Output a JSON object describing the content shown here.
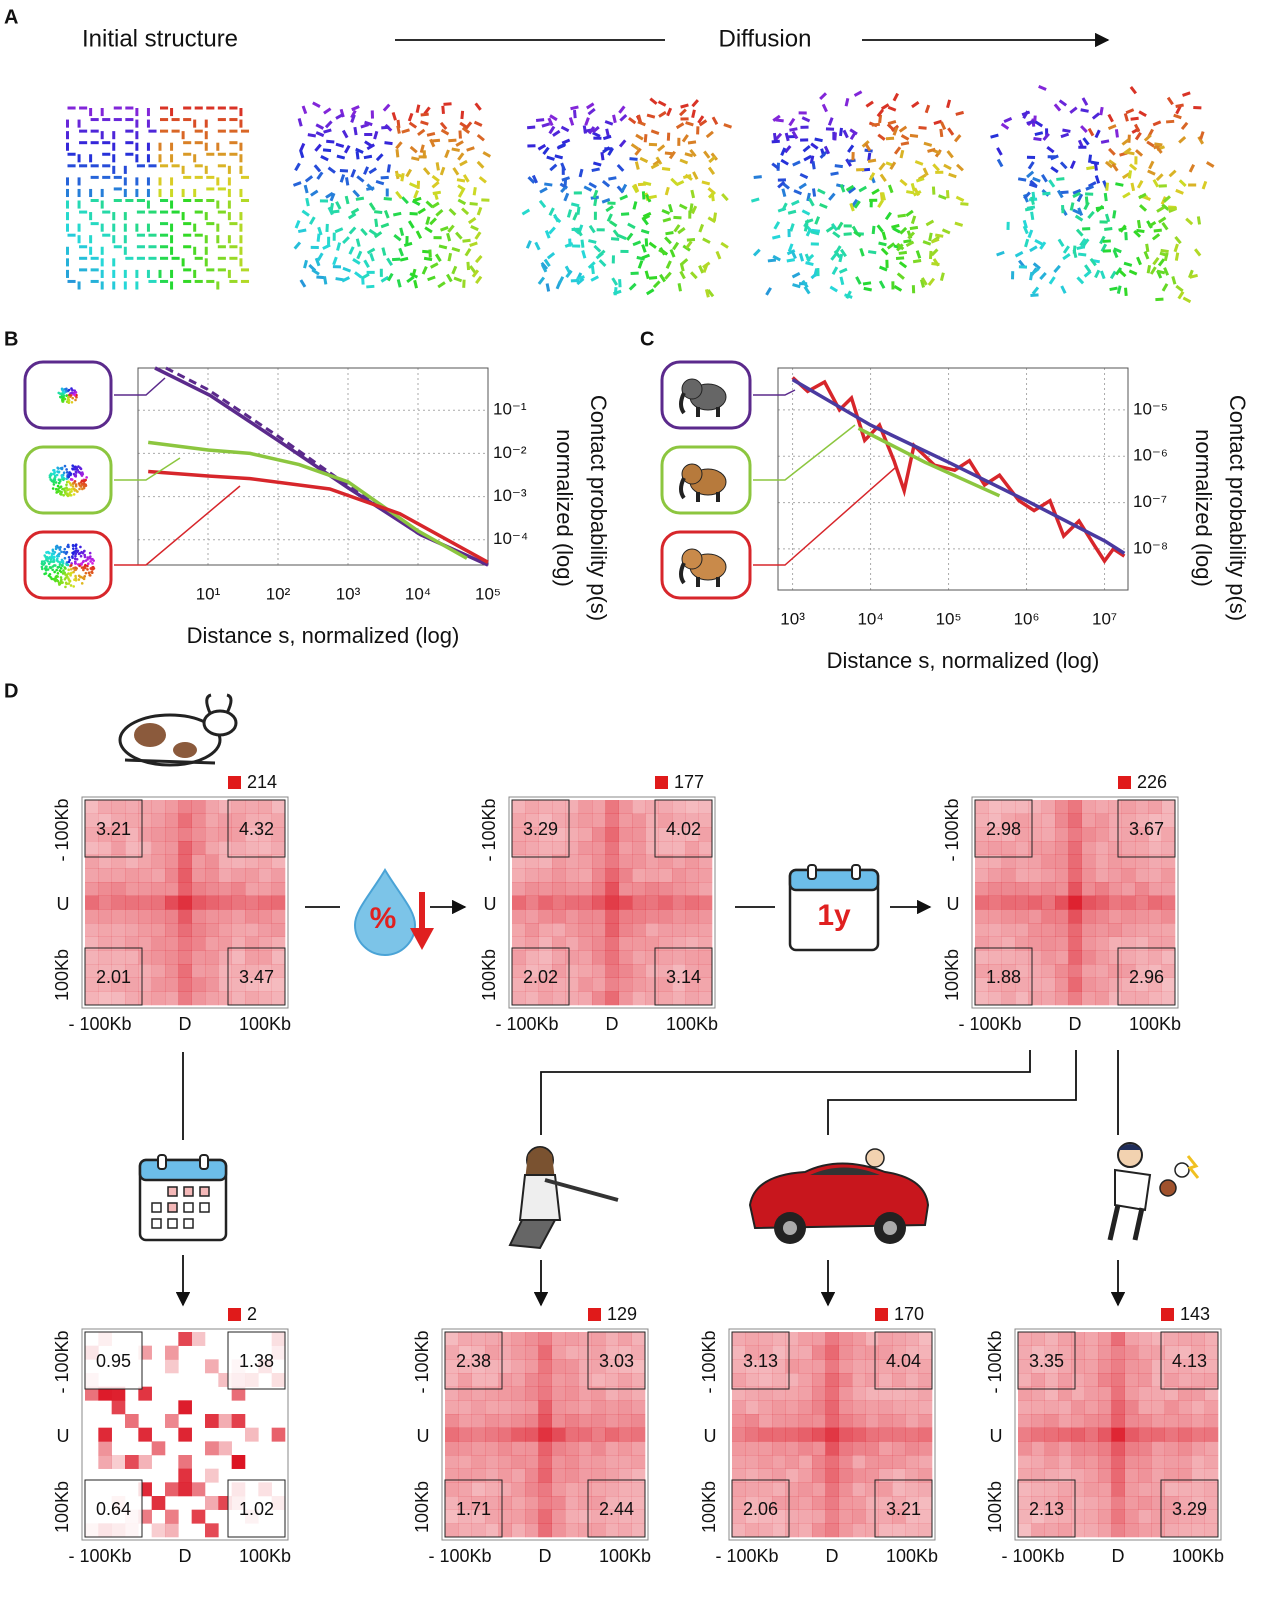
{
  "panel_a": {
    "label": "A",
    "left_title": "Initial structure",
    "center_title": "Diffusion"
  },
  "chart_data": [
    {
      "label": "B",
      "type": "line",
      "log": true,
      "grid": true,
      "xlabel": "Distance s, normalized (log)",
      "ylabel": [
        "Contact probability p(s)",
        "normalized (log)"
      ],
      "xlim": [
        1,
        100000
      ],
      "ylim": [
        2.6e-05,
        0.95
      ],
      "xticks": [
        {
          "value": 10,
          "label": "10¹"
        },
        {
          "value": 100,
          "label": "10²"
        },
        {
          "value": 1000,
          "label": "10³"
        },
        {
          "value": 10000,
          "label": "10⁴"
        },
        {
          "value": 100000,
          "label": "10⁵"
        }
      ],
      "yticks": [
        {
          "value": 0.1,
          "label": "10⁻¹"
        },
        {
          "value": 0.01,
          "label": "10⁻²"
        },
        {
          "value": 0.001,
          "label": "10⁻³"
        },
        {
          "value": 0.0001,
          "label": "10⁻⁴"
        }
      ],
      "series": [
        {
          "color": "#5b2a8c",
          "x": [
            1.75,
            10.7,
            100,
            1000,
            11000,
            100000
          ],
          "values": [
            0.95,
            0.22,
            0.02,
            0.0016,
            0.00013,
            2.6e-05
          ]
        },
        {
          "color": "#5b2a8c",
          "dashed": true,
          "x": [
            2.5,
            10,
            100,
            1000,
            10000,
            100000
          ],
          "values": [
            0.95,
            0.3,
            0.025,
            0.0018,
            0.00014,
            2.6e-05
          ]
        },
        {
          "color": "#8cc63f",
          "x": [
            1.4,
            10,
            40,
            200,
            1000,
            10000,
            50000
          ],
          "values": [
            0.018,
            0.012,
            0.01,
            0.0055,
            0.0022,
            0.00016,
            3.7e-05
          ]
        },
        {
          "color": "#d7262b",
          "x": [
            1.4,
            10,
            40,
            550,
            5500,
            100000
          ],
          "values": [
            0.0038,
            0.003,
            0.0026,
            0.0015,
            0.0004,
            3e-05
          ]
        }
      ]
    },
    {
      "label": "C",
      "type": "line",
      "log": true,
      "grid": true,
      "xlabel": "Distance s, normalized (log)",
      "ylabel": [
        "Contact probability p(s)",
        "normalized (log)"
      ],
      "xlim": [
        650,
        20000000
      ],
      "ylim": [
        1.3e-09,
        8e-05
      ],
      "xticks": [
        {
          "value": 1000,
          "label": "10³"
        },
        {
          "value": 10000,
          "label": "10⁴"
        },
        {
          "value": 100000,
          "label": "10⁵"
        },
        {
          "value": 1000000,
          "label": "10⁶"
        },
        {
          "value": 10000000,
          "label": "10⁷"
        }
      ],
      "yticks": [
        {
          "value": 1e-05,
          "label": "10⁻⁵"
        },
        {
          "value": 1e-06,
          "label": "10⁻⁶"
        },
        {
          "value": 1e-07,
          "label": "10⁻⁷"
        },
        {
          "value": 1e-08,
          "label": "10⁻⁸"
        }
      ],
      "series": [
        {
          "color": "#d7262b",
          "x": [
            1000,
            1560,
            2570,
            4000,
            5700,
            8400,
            13000,
            20000,
            27000,
            36000,
            66000,
            120000,
            185000,
            290000,
            450000,
            800000,
            1250000,
            2000000,
            3000000,
            4700000,
            7400000,
            10000000,
            13000000,
            18000000
          ],
          "values": [
            5e-05,
            2.5e-05,
            4e-05,
            1e-05,
            1.8e-05,
            2.2e-06,
            4.7e-06,
            8e-07,
            1.8e-07,
            1.7e-06,
            6.4e-07,
            5e-07,
            8e-07,
            2.4e-07,
            3.9e-07,
            1.1e-07,
            6.7e-08,
            1.1e-07,
            1.9e-08,
            4e-08,
            1.2e-08,
            5.5e-09,
            1e-08,
            7e-09
          ]
        },
        {
          "color": "#8cc63f",
          "x": [
            7000,
            50000,
            450000
          ],
          "values": [
            4e-06,
            7.4e-07,
            1.4e-07
          ]
        },
        {
          "color": "#4a3aa0",
          "x": [
            1000,
            10000,
            100000,
            1000000,
            10000000,
            18000000
          ],
          "values": [
            4.5e-05,
            4.7e-06,
            7.4e-07,
            1.1e-07,
            1.5e-08,
            8e-09
          ]
        }
      ]
    }
  ],
  "panel_d": {
    "label": "D",
    "drop_text": "%",
    "calendar_text": "1y",
    "y_axis": [
      "- 100Kb",
      "U",
      "100Kb"
    ],
    "x_axis": [
      "- 100Kb",
      "D",
      "100Kb"
    ],
    "maps": [
      {
        "count": 214,
        "corners": [
          3.21,
          4.32,
          2.01,
          3.47
        ]
      },
      {
        "count": 177,
        "corners": [
          3.29,
          4.02,
          2.02,
          3.14
        ]
      },
      {
        "count": 226,
        "corners": [
          2.98,
          3.67,
          1.88,
          2.96
        ]
      },
      {
        "count": 2,
        "corners": [
          0.95,
          1.38,
          0.64,
          1.02
        ]
      },
      {
        "count": 129,
        "corners": [
          2.38,
          3.03,
          1.71,
          2.44
        ]
      },
      {
        "count": 170,
        "corners": [
          3.13,
          4.04,
          2.06,
          3.21
        ]
      },
      {
        "count": 143,
        "corners": [
          3.35,
          4.13,
          2.13,
          3.29
        ]
      }
    ]
  }
}
